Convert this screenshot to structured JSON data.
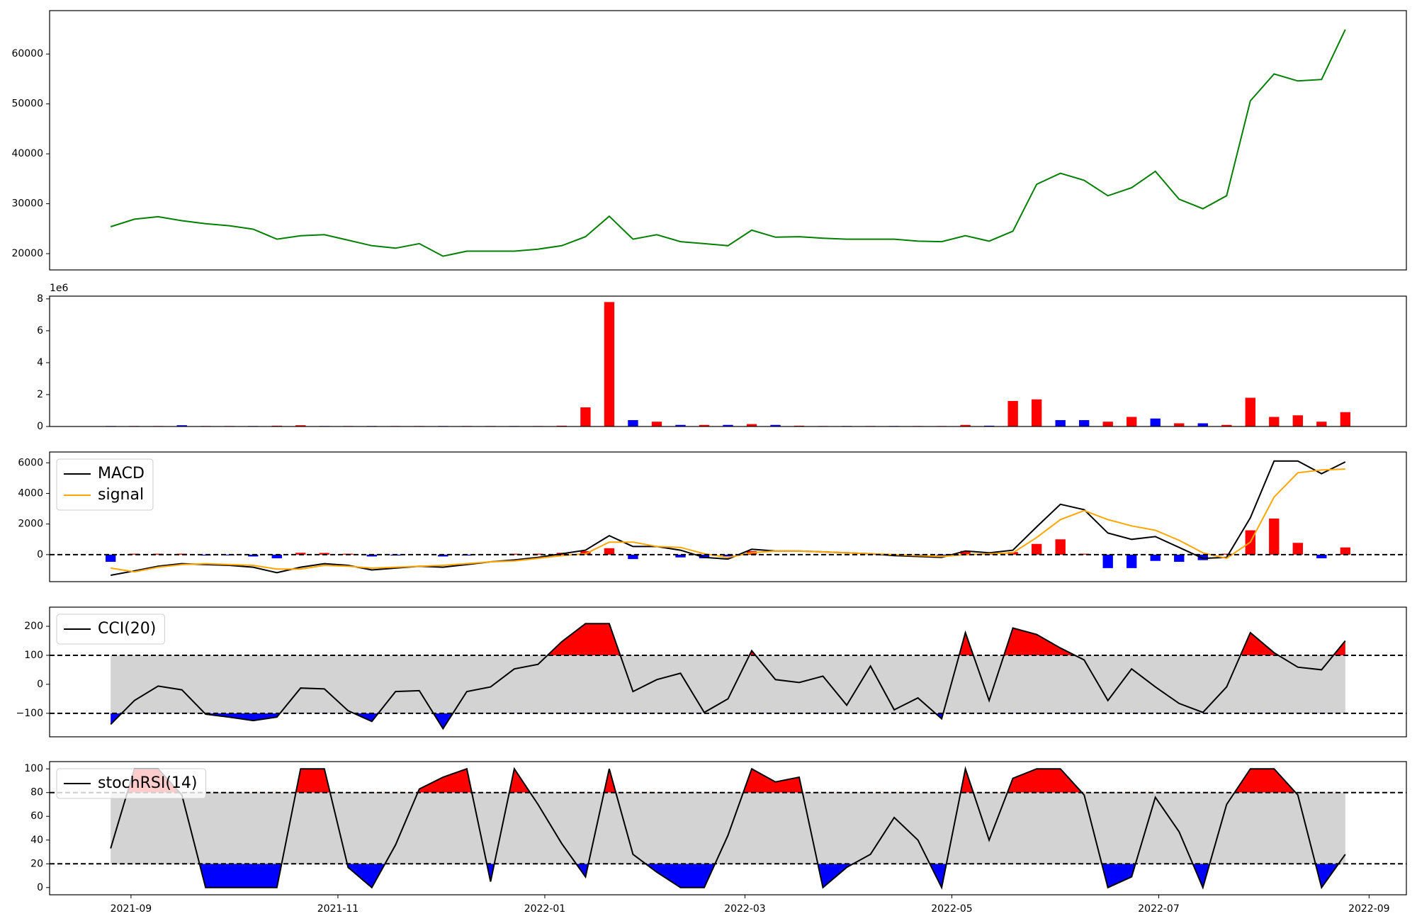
{
  "chart_data": [
    {
      "type": "line",
      "x": [
        18865,
        18872,
        18879,
        18886,
        18893,
        18900,
        18907,
        18914,
        18921,
        18928,
        18935,
        18942,
        18949,
        18956,
        18963,
        18970,
        18977,
        18984,
        18991,
        18998,
        19005,
        19012,
        19019,
        19026,
        19033,
        19040,
        19047,
        19054,
        19061,
        19068,
        19075,
        19082,
        19089,
        19096,
        19103,
        19110,
        19117,
        19124,
        19131,
        19138,
        19145,
        19152,
        19159,
        19166,
        19173,
        19180,
        19187,
        19194,
        19201,
        19208,
        19215,
        19222,
        19229
      ],
      "xlim": [
        18847,
        19247
      ],
      "ylim": [
        16740,
        68690
      ],
      "yticks": [
        20000,
        30000,
        40000,
        50000,
        60000
      ],
      "series": [
        {
          "color": "#008000",
          "values": [
            25400,
            26900,
            27400,
            26600,
            26000,
            25600,
            24900,
            22900,
            23600,
            23800,
            22700,
            21600,
            21100,
            22000,
            19500,
            20500,
            20500,
            20500,
            20900,
            21600,
            23400,
            27500,
            22900,
            23800,
            22400,
            22000,
            21600,
            24700,
            23300,
            23400,
            23100,
            22900,
            22900,
            22900,
            22500,
            22400,
            23600,
            22500,
            24500,
            33900,
            36100,
            34700,
            31600,
            33200,
            36500,
            30900,
            29000,
            31600,
            50600,
            56000,
            54600,
            54900,
            64900
          ]
        }
      ]
    },
    {
      "type": "bar",
      "x": [
        18865,
        18872,
        18879,
        18886,
        18893,
        18900,
        18907,
        18914,
        18921,
        18928,
        18935,
        18942,
        18949,
        18956,
        18963,
        18970,
        18977,
        18984,
        18991,
        18998,
        19005,
        19012,
        19019,
        19026,
        19033,
        19040,
        19047,
        19054,
        19061,
        19068,
        19075,
        19082,
        19089,
        19096,
        19103,
        19110,
        19117,
        19124,
        19131,
        19138,
        19145,
        19152,
        19159,
        19166,
        19173,
        19180,
        19187,
        19194,
        19201,
        19208,
        19215,
        19222,
        19229
      ],
      "xlim": [
        18847,
        19247
      ],
      "ylim": [
        0,
        8.17
      ],
      "yticks": [
        0,
        2,
        4,
        6,
        8
      ],
      "offset_label": "1e6",
      "values": [
        0.03,
        0.03,
        0.03,
        0.08,
        0.03,
        0.03,
        0.03,
        0.05,
        0.08,
        0.03,
        0.03,
        0.03,
        0.03,
        0.03,
        0.03,
        0.03,
        0.03,
        0.03,
        0.03,
        0.05,
        1.2,
        7.8,
        0.4,
        0.3,
        0.1,
        0.1,
        0.1,
        0.15,
        0.1,
        0.05,
        0.03,
        0.03,
        0.03,
        0.03,
        0.03,
        0.03,
        0.1,
        0.05,
        1.6,
        1.7,
        0.4,
        0.4,
        0.3,
        0.6,
        0.5,
        0.2,
        0.2,
        0.1,
        1.8,
        0.6,
        0.7,
        0.3,
        0.9
      ],
      "colors": [
        "#0000ff",
        "#ff0000",
        "#ff0000",
        "#0000ff",
        "#ff0000",
        "#ff0000",
        "#0000ff",
        "#ff0000",
        "#ff0000",
        "#0000ff",
        "#ff0000",
        "#0000ff",
        "#ff0000",
        "#ff0000",
        "#0000ff",
        "#ff0000",
        "#ff0000",
        "#0000ff",
        "#ff0000",
        "#ff0000",
        "#ff0000",
        "#ff0000",
        "#0000ff",
        "#ff0000",
        "#0000ff",
        "#ff0000",
        "#0000ff",
        "#ff0000",
        "#0000ff",
        "#ff0000",
        "#ff0000",
        "#0000ff",
        "#ff0000",
        "#0000ff",
        "#ff0000",
        "#ff0000",
        "#ff0000",
        "#0000ff",
        "#ff0000",
        "#ff0000",
        "#0000ff",
        "#0000ff",
        "#ff0000",
        "#ff0000",
        "#0000ff",
        "#ff0000",
        "#0000ff",
        "#ff0000",
        "#ff0000",
        "#ff0000",
        "#ff0000",
        "#ff0000",
        "#ff0000"
      ]
    },
    {
      "type": "line",
      "x": [
        18865,
        18872,
        18879,
        18886,
        18893,
        18900,
        18907,
        18914,
        18921,
        18928,
        18935,
        18942,
        18949,
        18956,
        18963,
        18970,
        18977,
        18984,
        18991,
        18998,
        19005,
        19012,
        19019,
        19026,
        19033,
        19040,
        19047,
        19054,
        19061,
        19068,
        19075,
        19082,
        19089,
        19096,
        19103,
        19110,
        19117,
        19124,
        19131,
        19138,
        19145,
        19152,
        19159,
        19166,
        19173,
        19180,
        19187,
        19194,
        19201,
        19208,
        19215,
        19222,
        19229
      ],
      "xlim": [
        18847,
        19247
      ],
      "ylim": [
        -1765,
        6706
      ],
      "yticks": [
        0,
        2000,
        4000,
        6000
      ],
      "hlines": [
        0
      ],
      "legend": "upper left",
      "histogram": {
        "pos_color": "#ff0000",
        "neg_color": "#0000ff",
        "values": [
          -470,
          60,
          60,
          60,
          -60,
          -50,
          -120,
          -240,
          120,
          110,
          60,
          -120,
          -60,
          0,
          -120,
          -60,
          0,
          60,
          60,
          120,
          230,
          420,
          -290,
          0,
          -180,
          -240,
          -110,
          230,
          0,
          0,
          0,
          0,
          0,
          -60,
          -60,
          -60,
          240,
          60,
          170,
          700,
          1000,
          60,
          -880,
          -880,
          -410,
          -470,
          -360,
          60,
          1590,
          2360,
          770,
          -240,
          470
        ]
      },
      "series": [
        {
          "name": "MACD",
          "color": "#000000",
          "values": [
            -1350,
            -1060,
            -760,
            -590,
            -650,
            -700,
            -820,
            -1180,
            -820,
            -590,
            -700,
            -1000,
            -880,
            -760,
            -820,
            -650,
            -470,
            -350,
            -180,
            60,
            290,
            1240,
            530,
            530,
            290,
            -180,
            -290,
            350,
            240,
            240,
            180,
            120,
            60,
            -60,
            -120,
            -180,
            240,
            120,
            290,
            1820,
            3290,
            2940,
            1410,
            1000,
            1180,
            470,
            -240,
            -180,
            2410,
            6120,
            6120,
            5290,
            6060
          ]
        },
        {
          "name": "signal",
          "color": "#ffa500",
          "values": [
            -880,
            -1120,
            -820,
            -650,
            -590,
            -650,
            -700,
            -940,
            -940,
            -700,
            -760,
            -880,
            -820,
            -760,
            -700,
            -590,
            -470,
            -410,
            -240,
            -60,
            60,
            820,
            820,
            530,
            470,
            60,
            -180,
            120,
            240,
            240,
            180,
            120,
            60,
            0,
            -60,
            -120,
            0,
            60,
            120,
            1120,
            2290,
            2880,
            2290,
            1880,
            1590,
            940,
            120,
            -240,
            820,
            3760,
            5350,
            5530,
            5590
          ]
        }
      ]
    },
    {
      "type": "line",
      "x": [
        18865,
        18872,
        18879,
        18886,
        18893,
        18900,
        18907,
        18914,
        18921,
        18928,
        18935,
        18942,
        18949,
        18956,
        18963,
        18970,
        18977,
        18984,
        18991,
        18998,
        19005,
        19012,
        19019,
        19026,
        19033,
        19040,
        19047,
        19054,
        19061,
        19068,
        19075,
        19082,
        19089,
        19096,
        19103,
        19110,
        19117,
        19124,
        19131,
        19138,
        19145,
        19152,
        19159,
        19166,
        19173,
        19180,
        19187,
        19194,
        19201,
        19208,
        19215,
        19222,
        19229
      ],
      "xlim": [
        18847,
        19247
      ],
      "ylim": [
        -181,
        266
      ],
      "yticks": [
        {
          "value": -100,
          "label": "−100"
        },
        0,
        100,
        200
      ],
      "hlines": [
        -100,
        100
      ],
      "legend": "upper left",
      "bands": {
        "lower": -100,
        "upper": 100,
        "fill": "#d3d3d3",
        "upper_color": "#ff0000",
        "lower_color": "#0000ff"
      },
      "series": [
        {
          "name": "CCI(20)",
          "color": "#000000",
          "values": [
            -138,
            -56,
            -6,
            -19,
            -103,
            -113,
            -125,
            -113,
            -13,
            -16,
            -91,
            -128,
            -25,
            -22,
            -153,
            -25,
            -9,
            53,
            69,
            147,
            209,
            209,
            -25,
            16,
            38,
            -97,
            -50,
            116,
            16,
            6,
            28,
            -72,
            63,
            -88,
            -47,
            -119,
            178,
            -56,
            194,
            172,
            125,
            84,
            -56,
            53,
            -9,
            -66,
            -97,
            -9,
            178,
            109,
            59,
            50,
            150
          ]
        }
      ]
    },
    {
      "type": "line",
      "x": [
        18865,
        18872,
        18879,
        18886,
        18893,
        18900,
        18907,
        18914,
        18921,
        18928,
        18935,
        18942,
        18949,
        18956,
        18963,
        18970,
        18977,
        18984,
        18991,
        18998,
        19005,
        19012,
        19019,
        19026,
        19033,
        19040,
        19047,
        19054,
        19061,
        19068,
        19075,
        19082,
        19089,
        19096,
        19103,
        19110,
        19117,
        19124,
        19131,
        19138,
        19145,
        19152,
        19159,
        19166,
        19173,
        19180,
        19187,
        19194,
        19201,
        19208,
        19215,
        19222,
        19229
      ],
      "xlim": [
        18847,
        19247
      ],
      "ylim": [
        -6.1,
        106.1
      ],
      "yticks": [
        0,
        20,
        40,
        60,
        80,
        100
      ],
      "hlines": [
        20,
        80
      ],
      "legend": "upper left",
      "xticks": [
        {
          "value": 18871,
          "label": "2021-09"
        },
        {
          "value": 18932,
          "label": "2021-11"
        },
        {
          "value": 18993,
          "label": "2022-01"
        },
        {
          "value": 19052,
          "label": "2022-03"
        },
        {
          "value": 19113,
          "label": "2022-05"
        },
        {
          "value": 19174,
          "label": "2022-07"
        },
        {
          "value": 19236,
          "label": "2022-09"
        }
      ],
      "bands": {
        "lower": 20,
        "upper": 80,
        "fill": "#d3d3d3",
        "upper_color": "#ff0000",
        "lower_color": "#0000ff"
      },
      "series": [
        {
          "name": "stochRSI(14)",
          "color": "#000000",
          "values": [
            33,
            100,
            100,
            78,
            0,
            0,
            0,
            0,
            100,
            100,
            17,
            0,
            36,
            83,
            93,
            100,
            5,
            100,
            70,
            37,
            9,
            100,
            28,
            13,
            0,
            0,
            44,
            100,
            89,
            93,
            0,
            17,
            28,
            59,
            40,
            0,
            100,
            40,
            92,
            100,
            100,
            78,
            0,
            9,
            76,
            47,
            0,
            70,
            100,
            100,
            78,
            0,
            28
          ]
        }
      ]
    }
  ]
}
